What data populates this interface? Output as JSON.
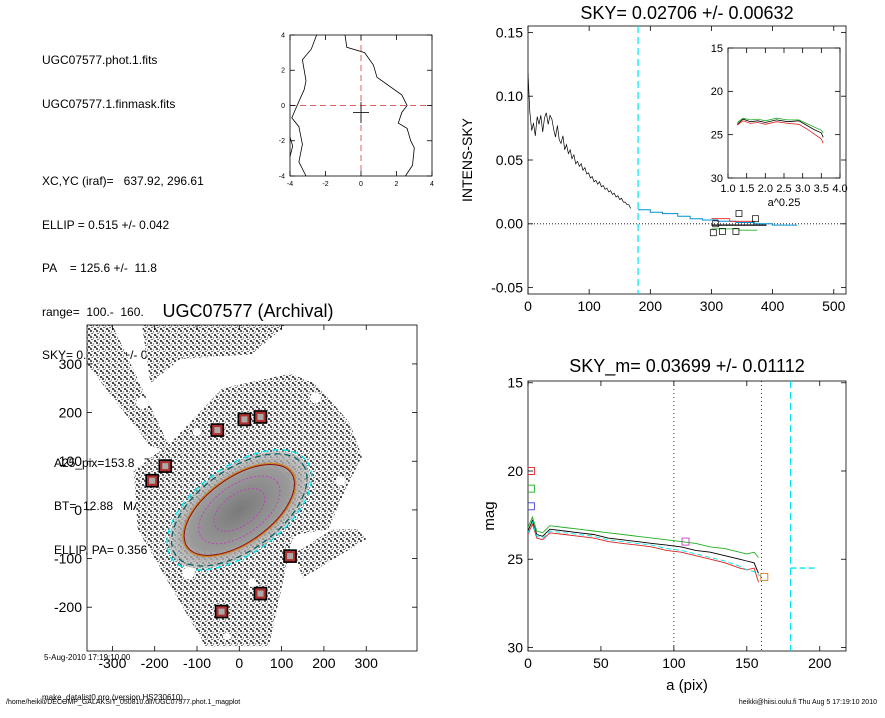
{
  "info": {
    "lines_a": [
      "UGC07577.phot.1.fits",
      "UGC07577.1.finmask.fits"
    ],
    "lines_b": [
      "XC,YC (iraf)=   637.92, 296.61",
      "ELLIP = 0.515 +/- 0.042",
      "PA    = 125.6 +/-  11.8",
      "range=  100.-  160.",
      "SKY= 0.02706 +/- 0.00632"
    ],
    "lines_c": [
      "A25_pix=153.8   T= 9.8",
      "BT=  12.88   MABS=-99.00",
      "ELLIP, PA= 0.356  130.0"
    ],
    "date": "5-Aug-2010 17:19:10.00",
    "version": "make_datalist0.pro (version HS230610)"
  },
  "footer": {
    "left": "/home/heikki/DECOMP_GALAKSIT_050810.dir/UGC07577.phot.1_magplot",
    "right": "heikki@hiisi.oulu.fi  Thu Aug  5 17:19:10 2010"
  },
  "colors": {
    "cyan": "#00e5ee",
    "red": "#e02020",
    "green": "#20b020",
    "magenta": "#c040c0",
    "blue": "#4040e0",
    "orange": "#d08020",
    "darkred": "#8a1010"
  },
  "chart_data": [
    {
      "type": "line",
      "name": "contour-mini",
      "xlim": [
        -4,
        4
      ],
      "ylim": [
        -4,
        4
      ],
      "xticks": [
        "-4",
        "-2",
        "0",
        "2",
        "4"
      ],
      "yticks": [
        "4",
        "2",
        "0",
        "-2",
        "-4"
      ],
      "left_curve": [
        [
          -2.5,
          4
        ],
        [
          -2.8,
          3.2
        ],
        [
          -3.3,
          2.6
        ],
        [
          -3.1,
          1.4
        ],
        [
          -3.2,
          0.9
        ],
        [
          -3.6,
          0
        ],
        [
          -3.9,
          -0.7
        ],
        [
          -3.5,
          -1.2
        ],
        [
          -3.3,
          -2.2
        ],
        [
          -3.5,
          -3.2
        ],
        [
          -3.1,
          -4
        ]
      ],
      "right_curve": [
        [
          -0.9,
          4
        ],
        [
          -0.8,
          3.3
        ],
        [
          0.2,
          3.0
        ],
        [
          0.7,
          2.3
        ],
        [
          0.9,
          1.6
        ],
        [
          2.3,
          0.6
        ],
        [
          2.6,
          0
        ],
        [
          2.3,
          -0.4
        ],
        [
          2.1,
          -1.0
        ],
        [
          2.6,
          -1.3
        ],
        [
          2.8,
          -2.0
        ],
        [
          3.0,
          -2.4
        ],
        [
          2.9,
          -3.4
        ],
        [
          2.5,
          -4
        ]
      ],
      "left_bump": [
        [
          -4,
          -1.8
        ],
        [
          -3.85,
          -2.3
        ],
        [
          -4,
          -2.9
        ]
      ]
    },
    {
      "type": "line",
      "title": "SKY= 0.02706 +/- 0.00632",
      "ylabel": "INTENS-SKY",
      "xlim": [
        0,
        520
      ],
      "ylim": [
        -0.055,
        0.155
      ],
      "xticks": [
        "0",
        "100",
        "200",
        "300",
        "400",
        "500"
      ],
      "yticks": [
        "0.15",
        "0.10",
        "0.05",
        "0.00",
        "-0.05"
      ],
      "vline_x": 180,
      "profile": [
        [
          0,
          0.118
        ],
        [
          3,
          0.088
        ],
        [
          6,
          0.073
        ],
        [
          9,
          0.079
        ],
        [
          12,
          0.069
        ],
        [
          15,
          0.084
        ],
        [
          18,
          0.078
        ],
        [
          21,
          0.085
        ],
        [
          24,
          0.072
        ],
        [
          27,
          0.083
        ],
        [
          30,
          0.087
        ],
        [
          33,
          0.078
        ],
        [
          36,
          0.085
        ],
        [
          39,
          0.082
        ],
        [
          42,
          0.074
        ],
        [
          45,
          0.068
        ],
        [
          48,
          0.077
        ],
        [
          51,
          0.066
        ],
        [
          54,
          0.063
        ],
        [
          57,
          0.069
        ],
        [
          60,
          0.058
        ],
        [
          63,
          0.062
        ],
        [
          66,
          0.055
        ],
        [
          69,
          0.058
        ],
        [
          72,
          0.051
        ],
        [
          75,
          0.054
        ],
        [
          78,
          0.047
        ],
        [
          81,
          0.049
        ],
        [
          84,
          0.045
        ],
        [
          87,
          0.047
        ],
        [
          90,
          0.042
        ],
        [
          93,
          0.044
        ],
        [
          96,
          0.039
        ],
        [
          99,
          0.04
        ],
        [
          102,
          0.036
        ],
        [
          105,
          0.037
        ],
        [
          108,
          0.033
        ],
        [
          111,
          0.034
        ],
        [
          114,
          0.031
        ],
        [
          117,
          0.033
        ],
        [
          120,
          0.029
        ],
        [
          123,
          0.03
        ],
        [
          126,
          0.027
        ],
        [
          129,
          0.028
        ],
        [
          132,
          0.025
        ],
        [
          135,
          0.026
        ],
        [
          138,
          0.023
        ],
        [
          141,
          0.024
        ],
        [
          144,
          0.021
        ],
        [
          147,
          0.022
        ],
        [
          150,
          0.019
        ],
        [
          153,
          0.02
        ],
        [
          156,
          0.017
        ],
        [
          159,
          0.017
        ],
        [
          162,
          0.015
        ],
        [
          165,
          0.015
        ],
        [
          168,
          0.012
        ]
      ],
      "sky_steps": [
        [
          180,
          0.011
        ],
        [
          200,
          0.011
        ],
        [
          200,
          0.009
        ],
        [
          220,
          0.009
        ],
        [
          220,
          0.008
        ],
        [
          245,
          0.008
        ],
        [
          245,
          0.006
        ],
        [
          265,
          0.006
        ],
        [
          265,
          0.004
        ],
        [
          285,
          0.004
        ],
        [
          285,
          0.003
        ],
        [
          310,
          0.003
        ],
        [
          310,
          0.002
        ],
        [
          340,
          0.002
        ],
        [
          340,
          0.001
        ],
        [
          370,
          0.001
        ],
        [
          370,
          0.0
        ],
        [
          400,
          0.0
        ],
        [
          400,
          -0.001
        ],
        [
          440,
          -0.001
        ]
      ],
      "squares": [
        [
          303,
          -0.007
        ],
        [
          318,
          -0.006
        ],
        [
          345,
          0.008
        ],
        [
          372,
          0.004
        ],
        [
          307,
          0.0
        ],
        [
          340,
          -0.006
        ]
      ]
    },
    {
      "type": "line",
      "name": "inset",
      "xlabel": "a^0.25",
      "xlim": [
        1.0,
        4.0
      ],
      "ylim": [
        15,
        30
      ],
      "xticks": [
        "1.0",
        "1.5",
        "2.0",
        "2.5",
        "3.0",
        "3.5",
        "4.0"
      ],
      "yticks": [
        "15",
        "20",
        "25",
        "30"
      ],
      "series": [
        {
          "name": "black",
          "color": "#000000",
          "values": [
            [
              1.25,
              23.8
            ],
            [
              1.4,
              23.2
            ],
            [
              1.6,
              23.5
            ],
            [
              1.8,
              23.4
            ],
            [
              2.0,
              23.6
            ],
            [
              2.3,
              23.3
            ],
            [
              2.6,
              23.5
            ],
            [
              2.9,
              23.4
            ],
            [
              3.1,
              23.9
            ],
            [
              3.3,
              24.4
            ],
            [
              3.5,
              24.8
            ],
            [
              3.55,
              25.3
            ]
          ]
        },
        {
          "name": "red",
          "color": "#e02020",
          "values": [
            [
              1.25,
              23.9
            ],
            [
              1.4,
              23.4
            ],
            [
              1.6,
              23.7
            ],
            [
              1.8,
              23.6
            ],
            [
              2.0,
              23.8
            ],
            [
              2.3,
              23.5
            ],
            [
              2.6,
              23.7
            ],
            [
              2.9,
              23.8
            ],
            [
              3.1,
              24.3
            ],
            [
              3.3,
              24.9
            ],
            [
              3.5,
              25.5
            ],
            [
              3.55,
              26.0
            ]
          ]
        },
        {
          "name": "green",
          "color": "#20b020",
          "values": [
            [
              1.25,
              23.6
            ],
            [
              1.4,
              23.1
            ],
            [
              1.6,
              23.3
            ],
            [
              1.8,
              23.2
            ],
            [
              2.0,
              23.4
            ],
            [
              2.3,
              23.1
            ],
            [
              2.6,
              23.3
            ],
            [
              2.9,
              23.3
            ],
            [
              3.1,
              23.7
            ],
            [
              3.3,
              24.1
            ],
            [
              3.5,
              24.5
            ],
            [
              3.55,
              24.8
            ]
          ]
        }
      ]
    },
    {
      "type": "image",
      "title": "UGC07577 (Archival)",
      "xlim": [
        -360,
        420
      ],
      "ylim": [
        -290,
        380
      ],
      "xticks": [
        "-300",
        "-200",
        "-100",
        "0",
        "100",
        "200",
        "300"
      ],
      "yticks": [
        "300",
        "200",
        "100",
        "0",
        "-100",
        "-200"
      ],
      "ellipse": {
        "cx": 0,
        "cy": 0,
        "a": 153.8,
        "ellip": 0.515,
        "pa": 125.6
      },
      "masks": [
        [
          -52,
          164
        ],
        [
          12,
          186
        ],
        [
          50,
          191
        ],
        [
          -175,
          90
        ],
        [
          -206,
          60
        ],
        [
          120,
          -95
        ],
        [
          50,
          -172
        ],
        [
          -42,
          -209
        ]
      ]
    },
    {
      "type": "line",
      "title": "SKY_m=  0.03699 +/- 0.01112",
      "xlabel": "a (pix)",
      "ylabel": "mag",
      "xlim": [
        0,
        218
      ],
      "ylim": [
        30.2,
        14.9
      ],
      "xticks": [
        "0",
        "50",
        "100",
        "150",
        "200"
      ],
      "yticks": [
        "15",
        "20",
        "25",
        "30"
      ],
      "vlines_dotted": [
        100,
        160
      ],
      "vline_cyan": 180,
      "sky_dash": [
        [
          180,
          25.5
        ],
        [
          197,
          25.5
        ]
      ],
      "series": [
        {
          "name": "black",
          "color": "#000000",
          "values": [
            [
              0,
              23.4
            ],
            [
              3,
              22.8
            ],
            [
              6,
              23.6
            ],
            [
              10,
              23.7
            ],
            [
              15,
              23.3
            ],
            [
              25,
              23.4
            ],
            [
              35,
              23.5
            ],
            [
              45,
              23.6
            ],
            [
              55,
              23.8
            ],
            [
              65,
              23.9
            ],
            [
              75,
              24.0
            ],
            [
              85,
              24.1
            ],
            [
              95,
              24.2
            ],
            [
              105,
              24.3
            ],
            [
              115,
              24.5
            ],
            [
              125,
              24.6
            ],
            [
              135,
              24.8
            ],
            [
              145,
              25.0
            ],
            [
              150,
              25.1
            ],
            [
              155,
              25.2
            ],
            [
              158,
              25.8
            ]
          ]
        },
        {
          "name": "red",
          "color": "#e02020",
          "values": [
            [
              0,
              23.6
            ],
            [
              3,
              23.0
            ],
            [
              6,
              23.8
            ],
            [
              10,
              23.9
            ],
            [
              15,
              23.5
            ],
            [
              25,
              23.6
            ],
            [
              35,
              23.7
            ],
            [
              45,
              23.8
            ],
            [
              55,
              24.0
            ],
            [
              65,
              24.1
            ],
            [
              75,
              24.2
            ],
            [
              85,
              24.3
            ],
            [
              95,
              24.5
            ],
            [
              105,
              24.6
            ],
            [
              115,
              24.8
            ],
            [
              125,
              25.0
            ],
            [
              135,
              25.2
            ],
            [
              145,
              25.5
            ],
            [
              150,
              25.6
            ],
            [
              155,
              25.5
            ],
            [
              158,
              26.3
            ]
          ]
        },
        {
          "name": "green",
          "color": "#20b020",
          "values": [
            [
              0,
              23.2
            ],
            [
              3,
              22.6
            ],
            [
              6,
              23.4
            ],
            [
              10,
              23.5
            ],
            [
              15,
              23.1
            ],
            [
              25,
              23.2
            ],
            [
              35,
              23.3
            ],
            [
              45,
              23.4
            ],
            [
              55,
              23.5
            ],
            [
              65,
              23.6
            ],
            [
              75,
              23.7
            ],
            [
              85,
              23.8
            ],
            [
              95,
              23.9
            ],
            [
              105,
              24.0
            ],
            [
              115,
              24.1
            ],
            [
              125,
              24.3
            ],
            [
              135,
              24.4
            ],
            [
              145,
              24.6
            ],
            [
              150,
              24.7
            ],
            [
              155,
              24.6
            ],
            [
              158,
              24.9
            ]
          ]
        },
        {
          "name": "cyan",
          "color": "#00e5ee",
          "values": [
            [
              0,
              23.5
            ],
            [
              3,
              22.9
            ],
            [
              6,
              23.7
            ],
            [
              10,
              23.8
            ],
            [
              15,
              23.4
            ],
            [
              25,
              23.5
            ],
            [
              35,
              23.6
            ],
            [
              45,
              23.7
            ],
            [
              55,
              23.9
            ],
            [
              65,
              24.0
            ],
            [
              75,
              24.1
            ],
            [
              85,
              24.2
            ],
            [
              95,
              24.4
            ],
            [
              105,
              24.5
            ],
            [
              115,
              24.7
            ],
            [
              125,
              24.9
            ],
            [
              135,
              25.1
            ],
            [
              145,
              25.4
            ],
            [
              150,
              25.6
            ],
            [
              155,
              25.7
            ],
            [
              160,
              26.0
            ]
          ]
        }
      ],
      "squares": [
        [
          2,
          20.0,
          "#e02020"
        ],
        [
          2,
          21.0,
          "#20b020"
        ],
        [
          2,
          22.0,
          "#4040e0"
        ],
        [
          108,
          24.0,
          "#c040c0"
        ],
        [
          162,
          26.0,
          "#d08020"
        ]
      ]
    }
  ]
}
